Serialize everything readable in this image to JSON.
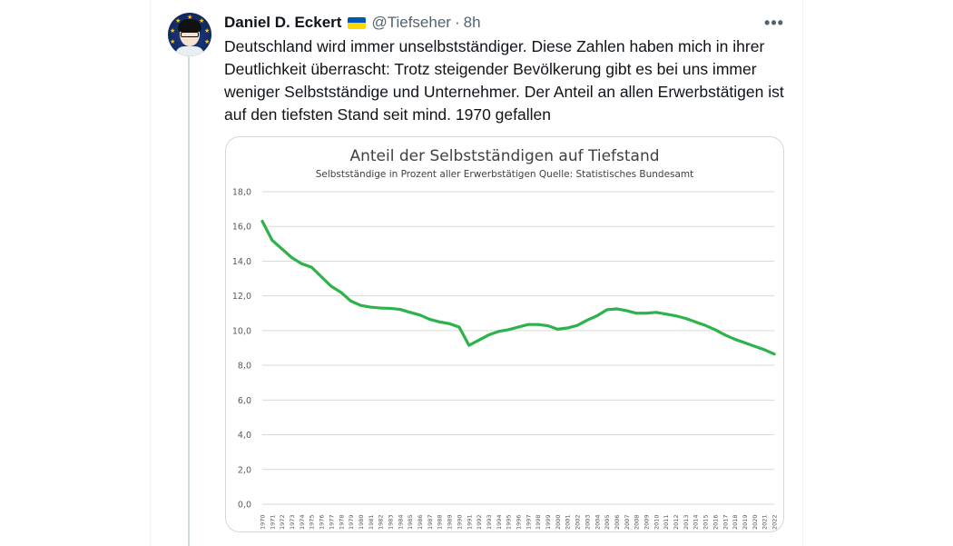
{
  "tweet": {
    "author_name": "Daniel D. Eckert",
    "author_flag": "ukraine-flag-icon",
    "handle": "@Tiefseher",
    "separator": "·",
    "time": "8h",
    "more_icon": "more-icon",
    "more_label": "•••",
    "text": "Deutschland wird immer unselbstständiger. Diese Zahlen haben mich in ihrer Deutlichkeit überrascht: Trotz steigender Bevölkerung gibt es bei uns immer weniger Selbstständige und Unternehmer. Der Anteil an allen Erwerbstätigen ist auf den tiefsten Stand seit mind. 1970 gefallen"
  },
  "colors": {
    "line": "#2eb24c",
    "grid": "#d9d9d9",
    "text": "#404040",
    "flag_blue": "#0057b7",
    "flag_yellow": "#ffd700"
  },
  "chart_data": {
    "type": "line",
    "title": "Anteil der Selbstständigen auf Tiefstand",
    "subtitle": "Selbstständige in Prozent aller Erwerbstätigen Quelle: Statistisches Bundesamt",
    "xlabel": "",
    "ylabel": "",
    "ylim": [
      0,
      18
    ],
    "y_ticks": [
      "0,0",
      "2,0",
      "4,0",
      "6,0",
      "8,0",
      "10,0",
      "12,0",
      "14,0",
      "16,0",
      "18,0"
    ],
    "grid": true,
    "legend": "none",
    "x": [
      "1970",
      "1971",
      "1972",
      "1973",
      "1974",
      "1975",
      "1976",
      "1977",
      "1978",
      "1979",
      "1980",
      "1981",
      "1982",
      "1983",
      "1984",
      "1985",
      "1986",
      "1987",
      "1988",
      "1989",
      "1990",
      "1991",
      "1992",
      "1993",
      "1994",
      "1995",
      "1996",
      "1997",
      "1998",
      "1999",
      "2000",
      "2001",
      "2002",
      "2003",
      "2004",
      "2005",
      "2006",
      "2007",
      "2008",
      "2009",
      "2010",
      "2011",
      "2012",
      "2013",
      "2014",
      "2015",
      "2016",
      "2017",
      "2018",
      "2019",
      "2020",
      "2021",
      "2022"
    ],
    "series": [
      {
        "values": [
          16.3,
          15.2,
          14.7,
          14.2,
          13.85,
          13.65,
          13.1,
          12.55,
          12.2,
          11.7,
          11.45,
          11.35,
          11.3,
          11.28,
          11.22,
          11.05,
          10.9,
          10.65,
          10.5,
          10.4,
          10.2,
          9.15,
          9.45,
          9.75,
          9.95,
          10.05,
          10.2,
          10.35,
          10.35,
          10.28,
          10.08,
          10.15,
          10.3,
          10.6,
          10.85,
          11.2,
          11.25,
          11.15,
          11.0,
          11.0,
          11.05,
          10.95,
          10.85,
          10.7,
          10.5,
          10.3,
          10.05,
          9.75,
          9.5,
          9.3,
          9.1,
          8.9,
          8.65
        ]
      }
    ]
  }
}
